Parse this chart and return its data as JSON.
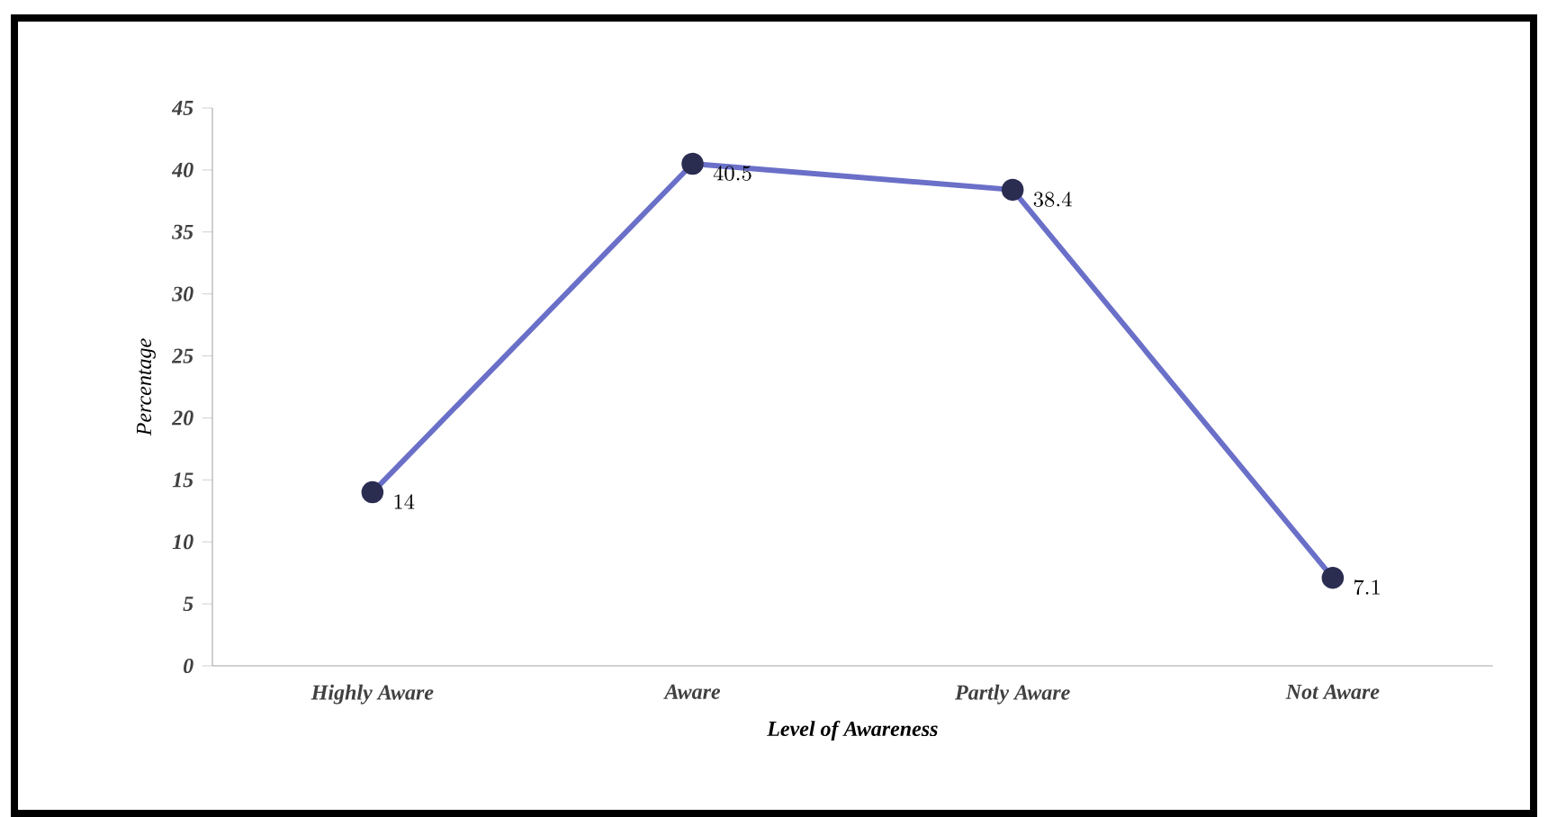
{
  "chart_data": {
    "type": "line",
    "xlabel": "Level of Awareness",
    "ylabel": "Percentage",
    "categories": [
      "Highly Aware",
      "Aware",
      "Partly Aware",
      "Not Aware"
    ],
    "series": [
      {
        "color": "#6a6fc8",
        "values": [
          14,
          40.5,
          38.4,
          7.1
        ]
      }
    ],
    "ylim": [
      0,
      45
    ],
    "yticks": [
      0,
      5,
      10,
      15,
      20,
      25,
      30,
      35,
      40,
      45
    ],
    "marker": "circle",
    "line_style": "solid",
    "data_labels": true,
    "grid": false,
    "legend": false
  }
}
